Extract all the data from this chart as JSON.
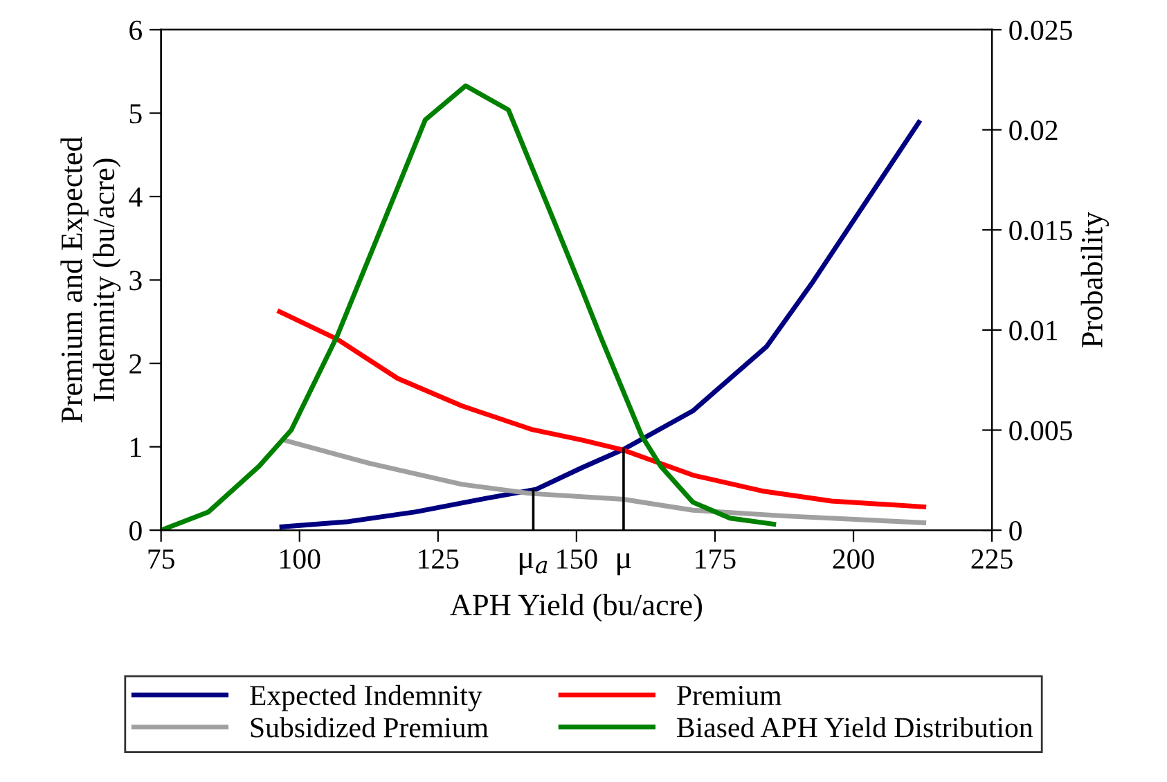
{
  "chart_data": {
    "type": "line",
    "xlabel": "APH Yield (bu/acre)",
    "ylabel": "Premium and Expected\nIndemnity (bu/acre)",
    "y2label": "Probability",
    "xlim": [
      75,
      225
    ],
    "xticks": [
      75,
      100,
      125,
      150,
      175,
      200,
      225
    ],
    "ylim": [
      0,
      6
    ],
    "yticks": [
      0,
      1,
      2,
      3,
      4,
      5,
      6
    ],
    "y2lim": [
      0,
      0.025
    ],
    "y2ticks": [
      0,
      0.005,
      0.01,
      0.015,
      0.02,
      0.025
    ],
    "grid": false,
    "legend": "bottom",
    "marker": "none",
    "line_style": "solid",
    "series": [
      {
        "name": "Expected Indemnity",
        "color": "#000080",
        "x": [
          96.8,
          108.5,
          121,
          133.5,
          142.7,
          151,
          158.5,
          171,
          184.3,
          192.7,
          202.7,
          211.8
        ],
        "values": [
          0.04,
          0.1,
          0.22,
          0.38,
          0.49,
          0.75,
          0.97,
          1.43,
          2.2,
          2.98,
          3.98,
          4.89
        ]
      },
      {
        "name": "Premium",
        "color": "#ff0000",
        "x": [
          96.4,
          106.8,
          117.7,
          129.3,
          141.8,
          151,
          158.5,
          171,
          183.5,
          196,
          212.7
        ],
        "values": [
          2.62,
          2.29,
          1.82,
          1.49,
          1.21,
          1.08,
          0.96,
          0.66,
          0.47,
          0.35,
          0.28
        ]
      },
      {
        "name": "Subsidized Premium",
        "color": "#a0a0a0",
        "x": [
          97.7,
          112.7,
          129.3,
          141.8,
          158.5,
          171,
          187.7,
          212.7
        ],
        "values": [
          1.07,
          0.8,
          0.55,
          0.44,
          0.37,
          0.24,
          0.17,
          0.09
        ]
      },
      {
        "name": "Biased APH Yield Distribution",
        "color": "#008000",
        "axis": "y2",
        "x": [
          75,
          83.5,
          92.7,
          98.5,
          106.8,
          115.2,
          122.7,
          130,
          137.7,
          146,
          151,
          154.3,
          161.8,
          165.2,
          171,
          177.7,
          185.6
        ],
        "values": [
          0,
          0.0009,
          0.0032,
          0.005,
          0.0097,
          0.0154,
          0.0205,
          0.0222,
          0.021,
          0.0154,
          0.012,
          0.0097,
          0.0047,
          0.0032,
          0.0014,
          0.0006,
          0.0003
        ]
      }
    ],
    "ref_lines": [
      {
        "axis": "x",
        "value": 142.2,
        "label": "μ$_{a}$",
        "color": "#000000"
      },
      {
        "axis": "x",
        "value": 158.5,
        "label": "μ",
        "color": "#000000"
      }
    ]
  }
}
